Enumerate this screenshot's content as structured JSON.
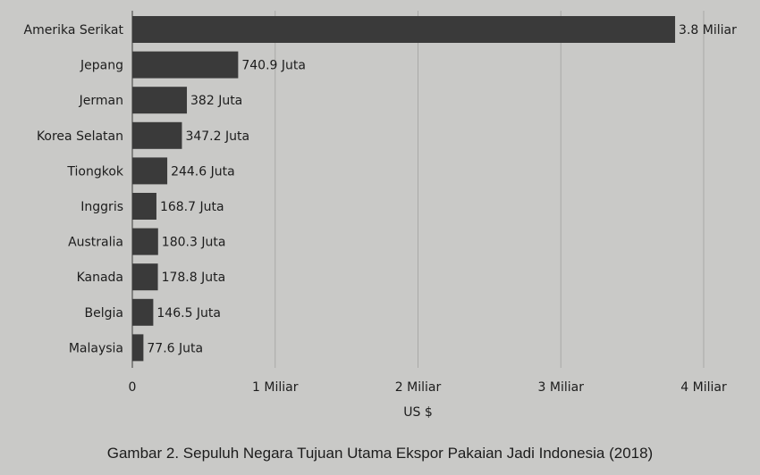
{
  "chart_data": {
    "type": "bar",
    "orientation": "horizontal",
    "categories": [
      "Amerika Serikat",
      "Jepang",
      "Jerman",
      "Korea Selatan",
      "Tiongkok",
      "Inggris",
      "Australia",
      "Kanada",
      "Belgia",
      "Malaysia"
    ],
    "values": [
      3800,
      740.9,
      382,
      347.2,
      244.6,
      168.7,
      180.3,
      178.8,
      146.5,
      77.6
    ],
    "value_labels": [
      "3.8 Miliar",
      "740.9 Juta",
      "382 Juta",
      "347.2 Juta",
      "244.6 Juta",
      "168.7 Juta",
      "180.3 Juta",
      "178.8 Juta",
      "146.5 Juta",
      "77.6 Juta"
    ],
    "value_unit": "Juta US$",
    "xlim": [
      0,
      4000
    ],
    "x_ticks": [
      0,
      1000,
      2000,
      3000,
      4000
    ],
    "x_tick_labels": [
      "0",
      "1 Miliar",
      "2 Miliar",
      "3 Miliar",
      "4 Miliar"
    ],
    "xlabel": "US $",
    "grid": "vertical",
    "bar_color": "#3a3a3a"
  },
  "caption": "Gambar 2. Sepuluh Negara Tujuan Utama Ekspor Pakaian Jadi Indonesia (2018)"
}
